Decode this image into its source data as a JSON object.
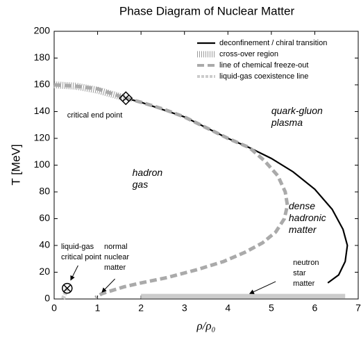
{
  "chart_data": {
    "type": "line",
    "title": "Phase Diagram of Nuclear Matter",
    "x_label": "ρ/ρ₀",
    "y_label": "T [MeV]",
    "xlim": [
      0,
      7
    ],
    "ylim": [
      0,
      200
    ],
    "xticks": [
      0,
      1,
      2,
      3,
      4,
      5,
      6,
      7
    ],
    "yticks": [
      0,
      20,
      40,
      60,
      80,
      100,
      120,
      140,
      160,
      180,
      200
    ],
    "grid": false,
    "legend": "upper right",
    "series": [
      {
        "name": "deconfinement / chiral transition",
        "color": "#000000",
        "style": "solid",
        "x": [
          1.65,
          2,
          3,
          4,
          4.5,
          5,
          5.5,
          6,
          6.4,
          6.65,
          6.75,
          6.7,
          6.55,
          6.3
        ],
        "values": [
          150,
          147,
          136,
          120,
          113,
          105,
          95,
          82,
          67,
          52,
          40,
          28,
          18,
          12
        ]
      },
      {
        "name": "cross-over region",
        "color": "#999999",
        "style": "hatched",
        "x": [
          0,
          0.5,
          1,
          1.65
        ],
        "values": [
          160,
          159,
          156,
          150
        ]
      },
      {
        "name": "line of chemical freeze-out",
        "color": "#aaaaaa",
        "style": "dashed",
        "x": [
          0,
          0.5,
          1,
          1.65,
          2,
          2.5,
          3,
          3.5,
          4,
          4.5,
          4.85,
          5.15,
          5.32,
          5.37,
          5.3,
          5.1,
          4.8,
          4.4,
          3.9,
          3.3,
          2.6,
          2,
          1.6,
          1.3,
          1.1,
          1.0,
          0.95
        ],
        "values": [
          160,
          159,
          157,
          150,
          147,
          142,
          136,
          128,
          120,
          113,
          103,
          92,
          80,
          70,
          60,
          50,
          42,
          35,
          28,
          22,
          16,
          12,
          9,
          6,
          4,
          2,
          1
        ]
      },
      {
        "name": "liquid-gas coexistence line",
        "color": "#cccccc",
        "style": "dotted",
        "x": [
          0.3,
          0.24,
          0.2
        ],
        "values": [
          8,
          3,
          0
        ]
      }
    ],
    "neutron_star_band": {
      "color": "#cccccc",
      "x": [
        2,
        6.7
      ],
      "values": [
        2,
        2
      ]
    },
    "markers": [
      {
        "shape": "diamond",
        "x": 1.65,
        "y": 150
      },
      {
        "shape": "circle-cross",
        "x": 0.3,
        "y": 8
      }
    ],
    "annotations": [
      {
        "lines": [
          "critical end point"
        ],
        "x": 0.3,
        "y": 137,
        "style": "normal"
      },
      {
        "lines": [
          "quark-gluon",
          "plasma"
        ],
        "x": 5.0,
        "y": 140,
        "style": "italic"
      },
      {
        "lines": [
          "hadron",
          "gas"
        ],
        "x": 1.8,
        "y": 94,
        "style": "italic"
      },
      {
        "lines": [
          "dense",
          "hadronic",
          "matter"
        ],
        "x": 5.4,
        "y": 69,
        "style": "italic"
      },
      {
        "lines": [
          "liquid-gas",
          "critical point"
        ],
        "x": 0.16,
        "y": 39,
        "style": "normal",
        "arrow_from": [
          0.55,
          25
        ],
        "arrow_to": [
          0.38,
          14
        ]
      },
      {
        "lines": [
          "normal",
          "nuclear",
          "matter"
        ],
        "x": 1.15,
        "y": 39,
        "style": "normal",
        "arrow_from": [
          1.4,
          15
        ],
        "arrow_to": [
          1.1,
          5
        ]
      },
      {
        "lines": [
          "neutron",
          "star",
          "matter"
        ],
        "x": 5.5,
        "y": 27,
        "style": "normal",
        "arrow_from": [
          5.1,
          13
        ],
        "arrow_to": [
          4.5,
          4
        ]
      }
    ]
  }
}
